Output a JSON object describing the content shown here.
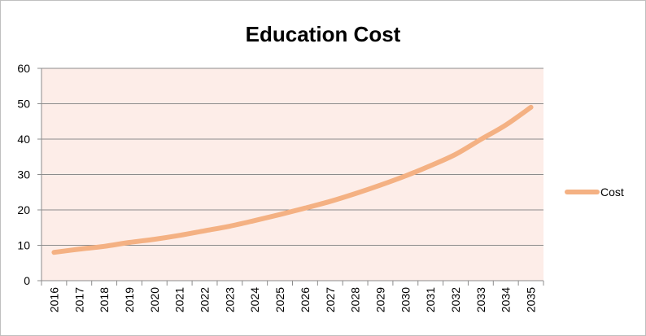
{
  "chart_data": {
    "type": "line",
    "title": "Education Cost",
    "xlabel": "",
    "ylabel": "",
    "categories": [
      "2016",
      "2017",
      "2018",
      "2019",
      "2020",
      "2021",
      "2022",
      "2023",
      "2024",
      "2025",
      "2026",
      "2027",
      "2028",
      "2029",
      "2030",
      "2031",
      "2032",
      "2033",
      "2034",
      "2035"
    ],
    "series": [
      {
        "name": "Cost",
        "color": "#F4B183",
        "values": [
          8.0,
          8.9,
          9.7,
          10.8,
          11.7,
          12.8,
          14.1,
          15.4,
          17.0,
          18.7,
          20.5,
          22.4,
          24.6,
          27.0,
          29.6,
          32.5,
          35.7,
          39.9,
          44.0,
          49.0
        ]
      }
    ],
    "ylim": [
      0,
      60
    ],
    "yticks": [
      "0",
      "10",
      "20",
      "30",
      "40",
      "50",
      "60"
    ],
    "grid": true,
    "plot_background": "#FDEDE8",
    "legend": "right"
  }
}
